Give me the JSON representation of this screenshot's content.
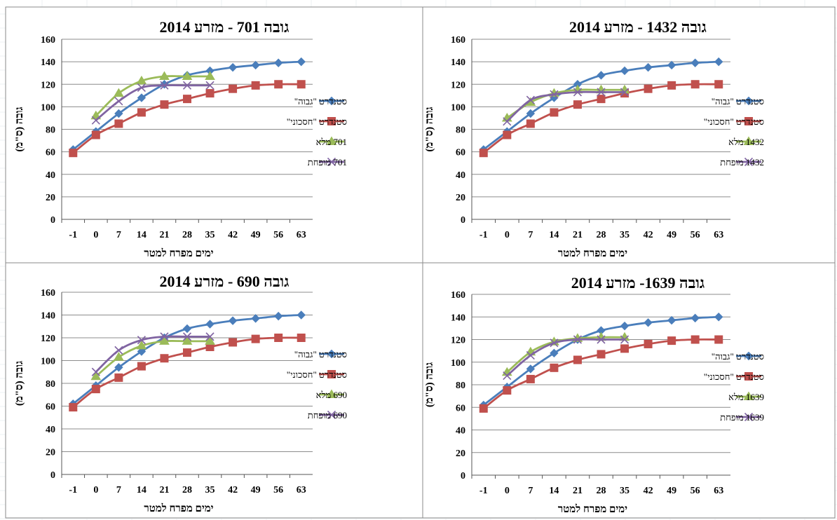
{
  "chart_data": [
    {
      "type": "line",
      "title": "גובה 701 - מזרע 2014",
      "xlabel": "ימים מפרח למטר",
      "ylabel": "גובה (ס\"מ)",
      "x": [
        "-1",
        "0",
        "7",
        "14",
        "21",
        "28",
        "35",
        "42",
        "49",
        "56",
        "63"
      ],
      "ylim": [
        0,
        160
      ],
      "yticks": [
        0,
        20,
        40,
        60,
        80,
        100,
        120,
        140,
        160
      ],
      "grid": "horizontal",
      "legend": "right",
      "series": [
        {
          "name": "סטנדרט \"גבוה\"",
          "color": "#4a7ebb",
          "marker": "diamond",
          "values": [
            62,
            78,
            94,
            108,
            120,
            128,
            132,
            135,
            137,
            139,
            140
          ]
        },
        {
          "name": "סטנדרט \"חסכוני\"",
          "color": "#c0504d",
          "marker": "square",
          "values": [
            59,
            75,
            85,
            95,
            102,
            107,
            112,
            116,
            119,
            120,
            120
          ]
        },
        {
          "name": "701  מלא",
          "color": "#9bbb59",
          "marker": "triangle",
          "values": [
            null,
            92,
            112,
            123,
            127,
            127,
            127,
            null,
            null,
            null,
            null
          ]
        },
        {
          "name": "701  מופחת",
          "color": "#8064a2",
          "marker": "x",
          "values": [
            null,
            88,
            105,
            117,
            119,
            119,
            119,
            null,
            null,
            null,
            null
          ]
        }
      ]
    },
    {
      "type": "line",
      "title": "גובה 1432 - מזרע 2014",
      "xlabel": "ימים מפרח למטר",
      "ylabel": "גובה (ס\"מ)",
      "x": [
        "-1",
        "0",
        "7",
        "14",
        "21",
        "28",
        "35",
        "42",
        "49",
        "56",
        "63"
      ],
      "ylim": [
        0,
        160
      ],
      "yticks": [
        0,
        20,
        40,
        60,
        80,
        100,
        120,
        140,
        160
      ],
      "grid": "horizontal",
      "legend": "right",
      "series": [
        {
          "name": "סטנדרט \"גבוה\"",
          "color": "#4a7ebb",
          "marker": "diamond",
          "values": [
            62,
            78,
            94,
            108,
            120,
            128,
            132,
            135,
            137,
            139,
            140
          ]
        },
        {
          "name": "סטנדרט \"חסכוני\"",
          "color": "#c0504d",
          "marker": "square",
          "values": [
            59,
            75,
            85,
            95,
            102,
            107,
            112,
            116,
            119,
            120,
            120
          ]
        },
        {
          "name": "1432  מלא",
          "color": "#9bbb59",
          "marker": "triangle",
          "values": [
            null,
            90,
            104,
            112,
            115,
            115,
            115,
            null,
            null,
            null,
            null
          ]
        },
        {
          "name": "1432  מופחת",
          "color": "#8064a2",
          "marker": "x",
          "values": [
            null,
            87,
            106,
            111,
            113,
            113,
            113,
            null,
            null,
            null,
            null
          ]
        }
      ]
    },
    {
      "type": "line",
      "title": "גובה 690 - מזרע 2014",
      "xlabel": "ימים מפרח למטר",
      "ylabel": "גובה (ס\"מ)",
      "x": [
        "-1",
        "0",
        "7",
        "14",
        "21",
        "28",
        "35",
        "42",
        "49",
        "56",
        "63"
      ],
      "ylim": [
        0,
        160
      ],
      "yticks": [
        0,
        20,
        40,
        60,
        80,
        100,
        120,
        140,
        160
      ],
      "grid": "horizontal",
      "legend": "right",
      "series": [
        {
          "name": "סטנדרט \"גבוה\"",
          "color": "#4a7ebb",
          "marker": "diamond",
          "values": [
            62,
            78,
            94,
            108,
            120,
            128,
            132,
            135,
            137,
            139,
            140
          ]
        },
        {
          "name": "סטנדרט \"חסכוני\"",
          "color": "#c0504d",
          "marker": "square",
          "values": [
            59,
            75,
            85,
            95,
            102,
            107,
            112,
            116,
            119,
            120,
            120
          ]
        },
        {
          "name": "690  מלא",
          "color": "#9bbb59",
          "marker": "triangle",
          "values": [
            null,
            86,
            103,
            113,
            117,
            117,
            117,
            null,
            null,
            null,
            null
          ]
        },
        {
          "name": "690  מופחת",
          "color": "#8064a2",
          "marker": "x",
          "values": [
            null,
            90,
            109,
            118,
            121,
            121,
            121,
            null,
            null,
            null,
            null
          ]
        }
      ]
    },
    {
      "type": "line",
      "title": "גובה 1639- מזרע 2014",
      "xlabel": "ימים מפרח למטר",
      "ylabel": "גובה (ס\"מ)",
      "x": [
        "-1",
        "0",
        "7",
        "14",
        "21",
        "28",
        "35",
        "42",
        "49",
        "56",
        "63"
      ],
      "ylim": [
        0,
        160
      ],
      "yticks": [
        0,
        20,
        40,
        60,
        80,
        100,
        120,
        140,
        160
      ],
      "grid": "horizontal",
      "legend": "right",
      "series": [
        {
          "name": "סטנדרט \"גבוה\"",
          "color": "#4a7ebb",
          "marker": "diamond",
          "values": [
            62,
            78,
            94,
            108,
            120,
            128,
            132,
            135,
            137,
            139,
            140
          ]
        },
        {
          "name": "סטנדרט \"חסכוני\"",
          "color": "#c0504d",
          "marker": "square",
          "values": [
            59,
            75,
            85,
            95,
            102,
            107,
            112,
            116,
            119,
            120,
            120
          ]
        },
        {
          "name": "1639  מלא",
          "color": "#9bbb59",
          "marker": "triangle",
          "values": [
            null,
            91,
            109,
            118,
            121,
            122,
            122,
            null,
            null,
            null,
            null
          ]
        },
        {
          "name": "1639  מופחת",
          "color": "#8064a2",
          "marker": "x",
          "values": [
            null,
            88,
            106,
            117,
            120,
            120,
            120,
            null,
            null,
            null,
            null
          ]
        }
      ]
    }
  ]
}
